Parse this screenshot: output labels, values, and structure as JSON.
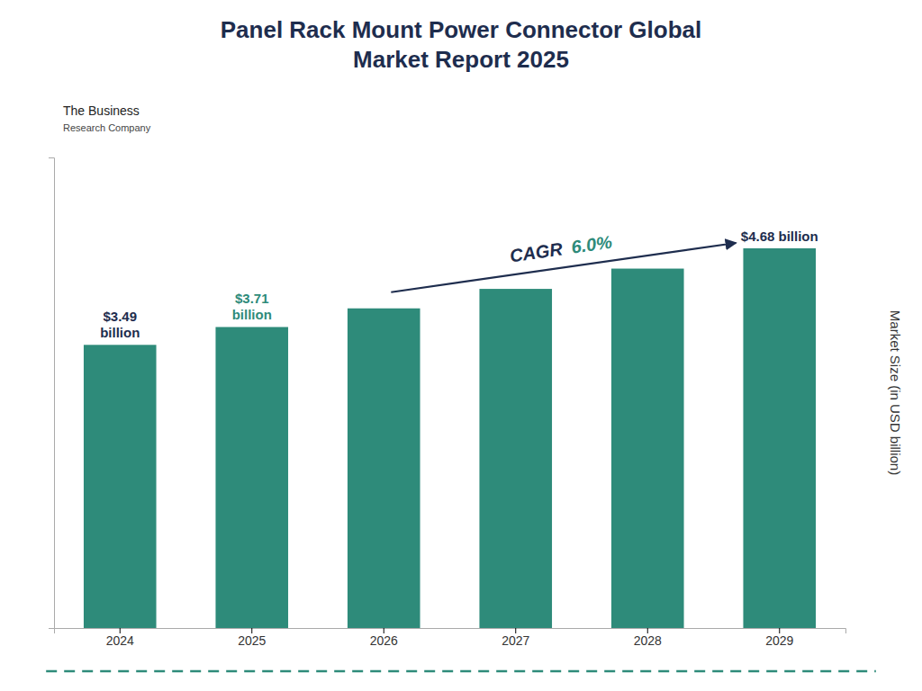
{
  "chart_data": {
    "type": "bar",
    "title": "Panel Rack Mount Power Connector Global\nMarket Report 2025",
    "categories": [
      "2024",
      "2025",
      "2026",
      "2027",
      "2028",
      "2029"
    ],
    "values": [
      3.49,
      3.71,
      3.94,
      4.18,
      4.43,
      4.68
    ],
    "value_labels": [
      "$3.49\nbillion",
      "$3.71\nbillion",
      null,
      null,
      null,
      "$4.68 billion"
    ],
    "value_label_colors": [
      "#1e2d4e",
      "#2e8b7a",
      null,
      null,
      null,
      "#1e2d4e"
    ],
    "data_labels": true,
    "color": "#2e8b7a",
    "ylabel": "Market Size (in USD billion)",
    "ylim": [
      0,
      5.8
    ],
    "yticks": [],
    "tick_labels": "x",
    "grid": false,
    "annotations": [
      {
        "text": "CAGR",
        "color": "#1e2d4e"
      },
      {
        "text": "6.0%",
        "color": "#2e8b7a"
      },
      {
        "text": "The Business"
      },
      {
        "text": "Research Company"
      }
    ]
  }
}
